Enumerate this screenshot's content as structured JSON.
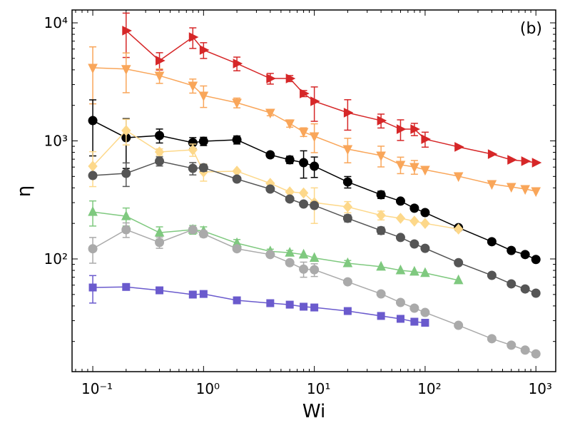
{
  "chart_data": {
    "type": "line",
    "annotation": "(b)",
    "xlabel": "Wi",
    "ylabel": "η",
    "xscale": "log",
    "yscale": "log",
    "minor_ticks": true,
    "xlim": [
      0.065,
      1510
    ],
    "ylim": [
      11.1,
      12850
    ],
    "xticks": [
      {
        "value": 0.1,
        "label": "10⁻¹"
      },
      {
        "value": 1,
        "label": "10⁰"
      },
      {
        "value": 10,
        "label": "10¹"
      },
      {
        "value": 100,
        "label": "10²"
      },
      {
        "value": 1000,
        "label": "10³"
      }
    ],
    "yticks": [
      {
        "value": 100,
        "label": "10²"
      },
      {
        "value": 1000,
        "label": "10³"
      },
      {
        "value": 10000,
        "label": "10⁴"
      }
    ],
    "series": [
      {
        "color": "#d62728",
        "marker": "triangle-right",
        "x": [
          0.2,
          0.4,
          0.8,
          1,
          2,
          4,
          6,
          8,
          10,
          20,
          40,
          60,
          80,
          100,
          200,
          400,
          600,
          800,
          1000
        ],
        "values": [
          8590,
          4786,
          7570,
          5890,
          4525,
          3378,
          3378,
          2520,
          2165,
          1733,
          1486,
          1258,
          1258,
          1035,
          889,
          773,
          691,
          673,
          654
        ],
        "errors": [
          3500,
          800,
          1500,
          900,
          600,
          350,
          200,
          150,
          700,
          500,
          200,
          250,
          150,
          150,
          null,
          null,
          null,
          null,
          null
        ]
      },
      {
        "color": "#f9a65a",
        "marker": "triangle-down",
        "x": [
          0.1,
          0.2,
          0.4,
          0.8,
          1,
          2,
          4,
          6,
          8,
          10,
          20,
          40,
          60,
          80,
          100,
          200,
          400,
          600,
          800,
          1000
        ],
        "values": [
          4160,
          4060,
          3570,
          2940,
          2420,
          2105,
          1733,
          1406,
          1190,
          1095,
          852,
          752,
          628,
          602,
          569,
          502,
          431,
          408,
          391,
          375
        ],
        "errors": [
          2100,
          1500,
          500,
          400,
          500,
          200,
          100,
          100,
          100,
          300,
          200,
          150,
          100,
          80,
          null,
          null,
          null,
          null,
          null,
          null
        ]
      },
      {
        "color": "#000000",
        "marker": "circle",
        "x": [
          0.1,
          0.2,
          0.4,
          0.8,
          1,
          2,
          4,
          6,
          8,
          10,
          20,
          40,
          60,
          80,
          100,
          200,
          400,
          600,
          800,
          1000
        ],
        "values": [
          1486,
          1064,
          1110,
          966,
          993,
          1021,
          762,
          692,
          654,
          610,
          449,
          350,
          309,
          269,
          247,
          184,
          140,
          118,
          109,
          99
        ],
        "errors": [
          740,
          480,
          150,
          100,
          80,
          80,
          40,
          50,
          170,
          120,
          50,
          25,
          null,
          null,
          null,
          null,
          null,
          null,
          null,
          null
        ]
      },
      {
        "color": "#fdd88a",
        "marker": "diamond",
        "x": [
          0.1,
          0.2,
          0.4,
          0.8,
          1,
          2,
          4,
          6,
          8,
          10,
          20,
          40,
          60,
          80,
          100,
          200
        ],
        "values": [
          610,
          1224,
          806,
          840,
          546,
          554,
          437,
          370,
          362,
          300,
          276,
          234,
          221,
          209,
          200,
          179
        ],
        "errors": [
          200,
          300,
          50,
          100,
          90,
          null,
          null,
          null,
          null,
          100,
          30,
          20,
          null,
          null,
          null,
          null
        ]
      },
      {
        "color": "#555555",
        "marker": "circle",
        "x": [
          0.1,
          0.2,
          0.4,
          0.8,
          1,
          2,
          4,
          6,
          8,
          10,
          20,
          40,
          60,
          80,
          100,
          200,
          400,
          600,
          800,
          1000
        ],
        "values": [
          509,
          531,
          673,
          585,
          593,
          475,
          391,
          322,
          292,
          284,
          221,
          174,
          152,
          134,
          123,
          93,
          72.6,
          61.5,
          55.7,
          51.3
        ],
        "errors": [
          null,
          120,
          60,
          70,
          40,
          null,
          null,
          null,
          null,
          null,
          15,
          12,
          null,
          null,
          null,
          null,
          null,
          null,
          null,
          null
        ]
      },
      {
        "color": "#7fc97f",
        "marker": "triangle-up",
        "x": [
          0.1,
          0.2,
          0.4,
          0.8,
          1,
          2,
          4,
          6,
          8,
          10,
          20,
          40,
          60,
          80,
          100,
          200
        ],
        "values": [
          250,
          230,
          167,
          177,
          172,
          136,
          116,
          113,
          109,
          102,
          92,
          86,
          80,
          78,
          76,
          66
        ],
        "errors": [
          60,
          40,
          20,
          15,
          15,
          10,
          5,
          5,
          null,
          null,
          5,
          null,
          null,
          null,
          null,
          null
        ]
      },
      {
        "color": "#aaaaaa",
        "marker": "circle",
        "x": [
          0.1,
          0.2,
          0.4,
          0.8,
          1,
          2,
          4,
          6,
          8,
          10,
          20,
          40,
          60,
          80,
          100,
          200,
          400,
          600,
          800,
          1000
        ],
        "values": [
          122,
          177,
          138,
          177,
          163,
          122,
          109,
          93,
          82,
          81,
          64,
          50.6,
          42.8,
          38.3,
          35.2,
          27.4,
          21.1,
          18.6,
          16.9,
          15.7
        ],
        "errors": [
          30,
          25,
          15,
          null,
          10,
          null,
          null,
          null,
          12,
          10,
          null,
          null,
          null,
          null,
          null,
          null,
          null,
          null,
          null,
          null
        ]
      },
      {
        "color": "#6a5acd",
        "marker": "square",
        "x": [
          0.1,
          0.2,
          0.4,
          0.8,
          1,
          2,
          4,
          6,
          8,
          10,
          20,
          40,
          60,
          80,
          100
        ],
        "values": [
          57.3,
          57.9,
          54.2,
          49.9,
          50.5,
          44.6,
          42.2,
          41.0,
          39.4,
          38.8,
          36.2,
          32.9,
          31.1,
          29.4,
          28.8
        ],
        "errors": [
          15,
          null,
          null,
          null,
          null,
          null,
          null,
          null,
          null,
          null,
          null,
          null,
          null,
          null,
          null
        ]
      }
    ]
  }
}
